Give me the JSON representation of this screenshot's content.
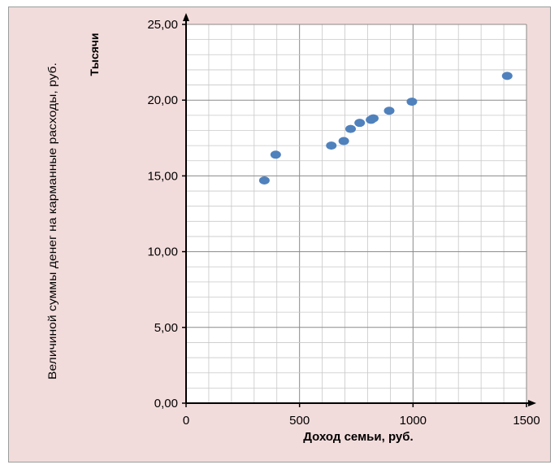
{
  "chart_data": {
    "type": "scatter",
    "xlabel": "Доход семьи, руб.",
    "ylabel": "Величиной суммы денег на карманные расходы, руб.",
    "y_unit_label": "Тысячи",
    "xlim": [
      0,
      1500
    ],
    "ylim": [
      0,
      25
    ],
    "x_ticks": [
      0,
      500,
      1000,
      1500
    ],
    "x_tick_labels": [
      "0",
      "500",
      "1000",
      "1500"
    ],
    "y_ticks": [
      0,
      5,
      10,
      15,
      20,
      25
    ],
    "y_tick_labels": [
      "0,00",
      "5,00",
      "10,00",
      "15,00",
      "20,00",
      "25,00"
    ],
    "grid": true,
    "point_color": "#4f81bd",
    "series": [
      {
        "x": [
          345,
          395,
          640,
          695,
          725,
          765,
          815,
          825,
          895,
          995,
          1415
        ],
        "y": [
          14.7,
          16.4,
          17.0,
          17.3,
          18.1,
          18.5,
          18.7,
          18.8,
          19.3,
          19.9,
          21.6
        ]
      }
    ]
  }
}
